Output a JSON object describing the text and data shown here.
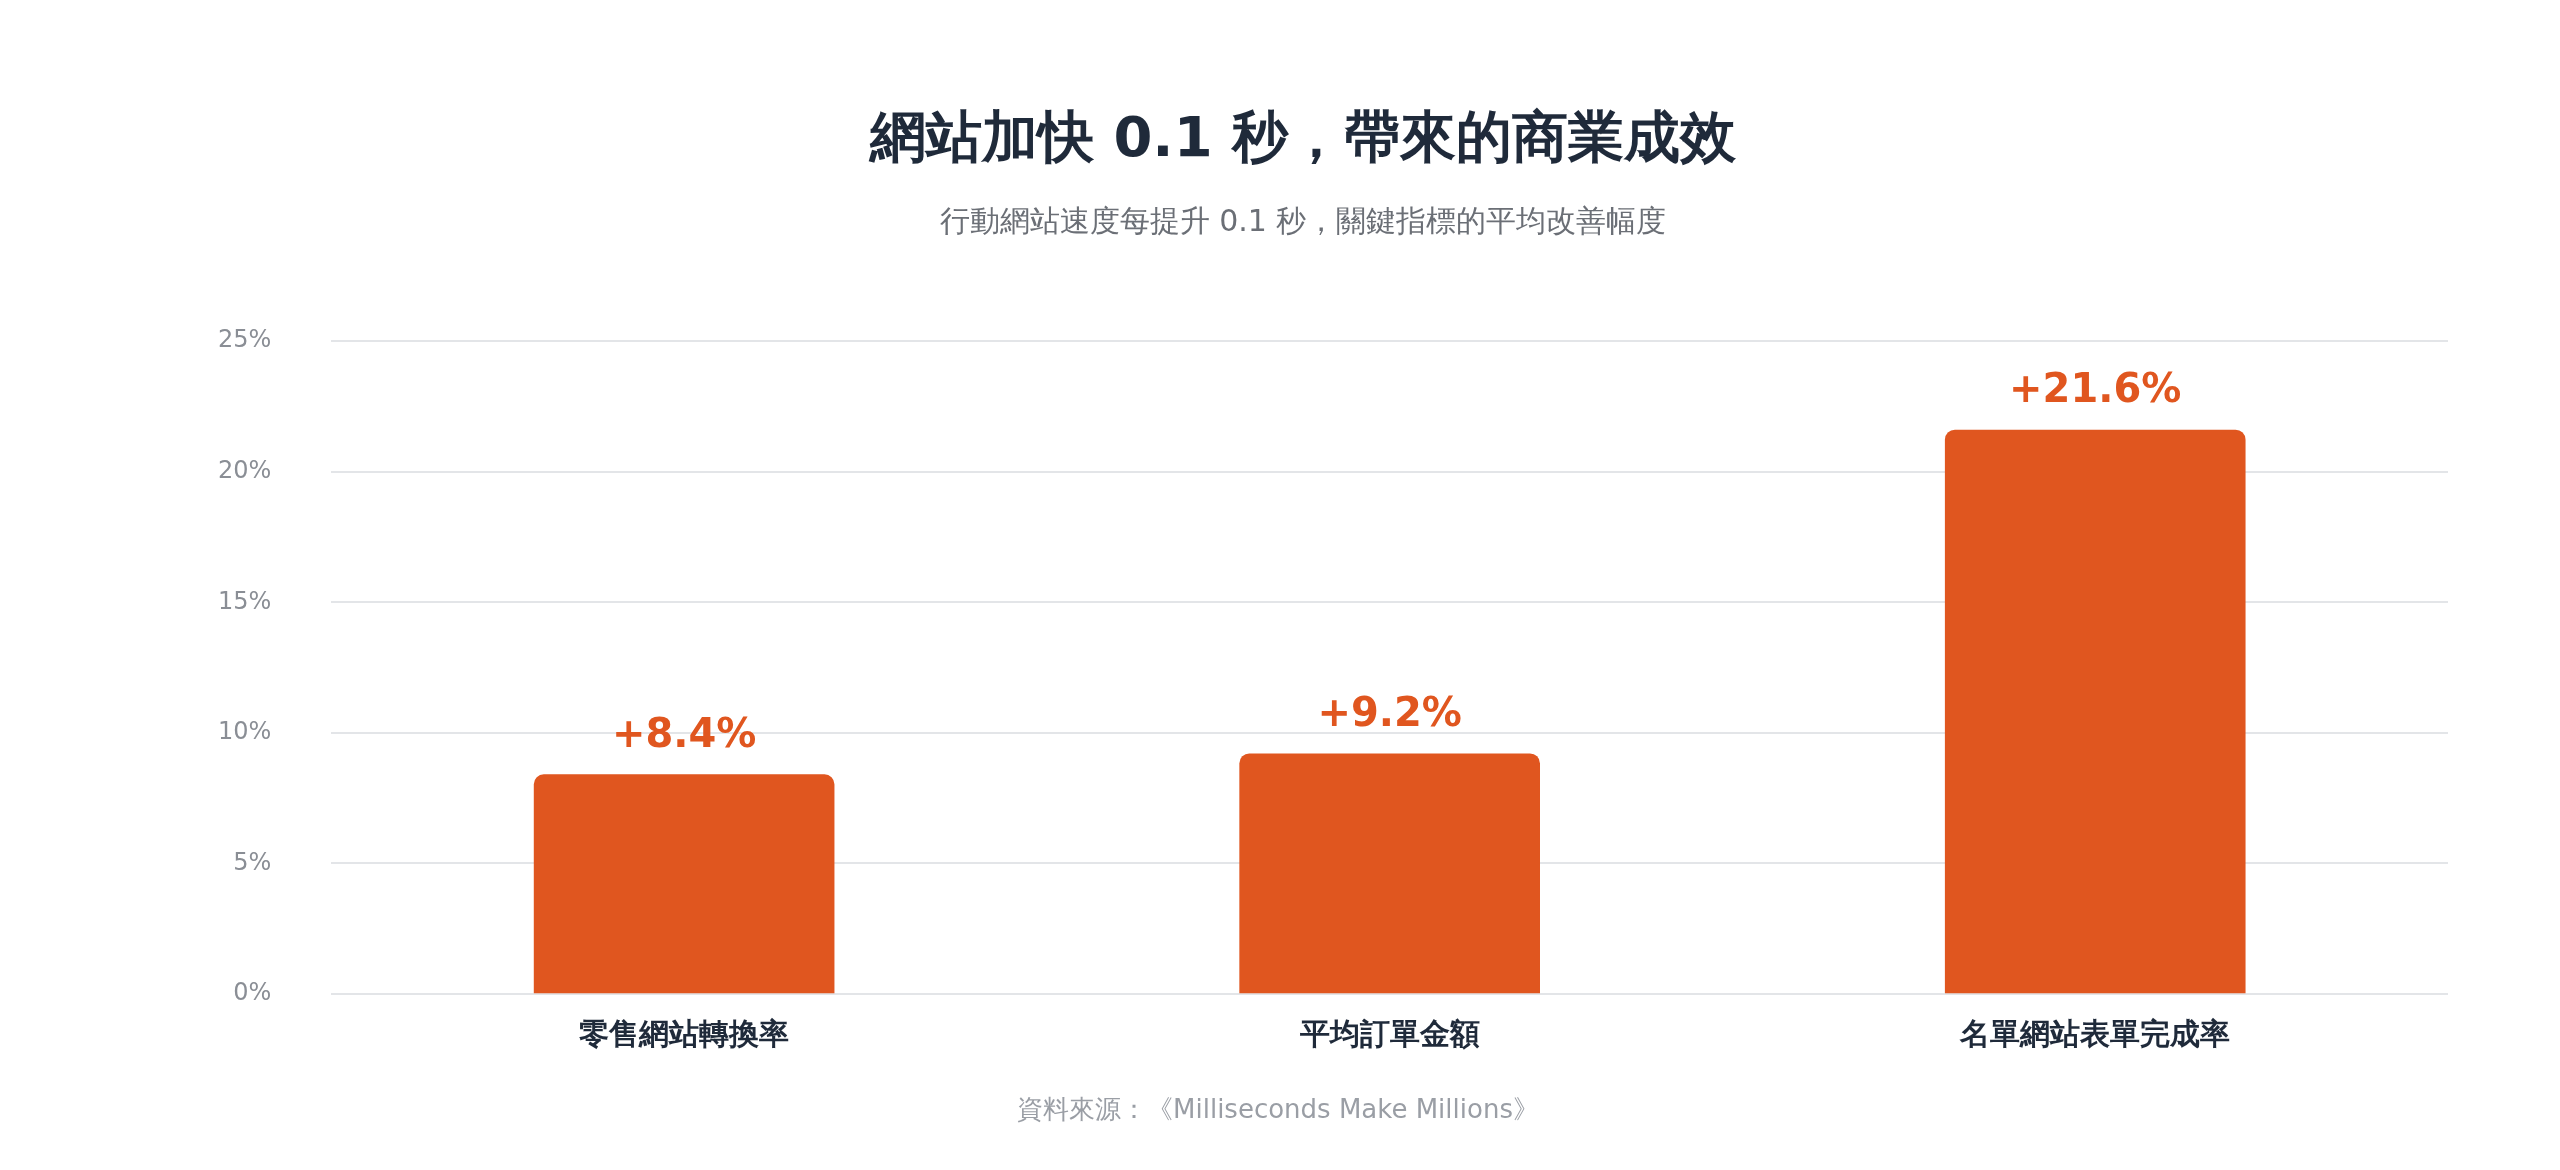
{
  "chart_data": {
    "type": "bar",
    "title": "網站加快 0.1 秒，帶來的商業成效",
    "subtitle": "行動網站速度每提升 0.1 秒，關鍵指標的平均改善幅度",
    "categories": [
      "零售網站轉換率",
      "平均訂單金額",
      "名單網站表單完成率"
    ],
    "values": [
      8.4,
      9.2,
      21.6
    ],
    "value_labels": [
      "+8.4%",
      "+9.2%",
      "+21.6%"
    ],
    "color": "#e0561f",
    "ylim": [
      0,
      25
    ],
    "yticks": [
      {
        "value": 0,
        "label": "0%"
      },
      {
        "value": 5,
        "label": "5%"
      },
      {
        "value": 10,
        "label": "10%"
      },
      {
        "value": 15,
        "label": "15%"
      },
      {
        "value": 20,
        "label": "20%"
      },
      {
        "value": 25,
        "label": "25%"
      }
    ],
    "grid": "y",
    "legend": false,
    "annotations": [
      "資料來源：《Milliseconds Make Millions》"
    ]
  }
}
